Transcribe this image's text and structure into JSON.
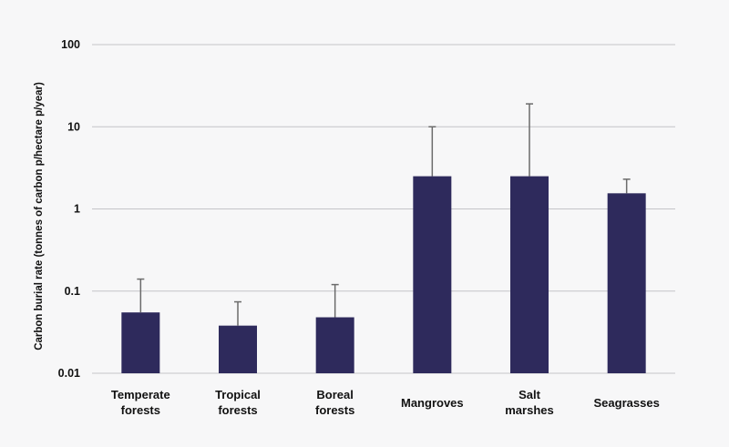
{
  "chart_data": {
    "type": "bar",
    "title": "",
    "xlabel": "",
    "ylabel": "Carbon burial rate (tonnes of carbon p/hectare p/year)",
    "yscale": "log",
    "ylim": [
      0.01,
      100
    ],
    "yticks": [
      100,
      10,
      1,
      0.1,
      0.01
    ],
    "ytick_labels": [
      "100",
      "10",
      "1",
      "0.1",
      "0.01"
    ],
    "grid": true,
    "bar_color": "#2e2a5c",
    "error_bar_color": "#6b6b6b",
    "grid_color": "#c4c4c8",
    "categories": [
      [
        "Temperate",
        "forests"
      ],
      [
        "Tropical",
        "forests"
      ],
      [
        "Boreal",
        "forests"
      ],
      [
        "Mangroves"
      ],
      [
        "Salt",
        "marshes"
      ],
      [
        "Seagrasses"
      ]
    ],
    "values": [
      0.055,
      0.038,
      0.048,
      2.5,
      2.5,
      1.55
    ],
    "error_upper": [
      0.14,
      0.074,
      0.12,
      10,
      19,
      2.3
    ]
  }
}
